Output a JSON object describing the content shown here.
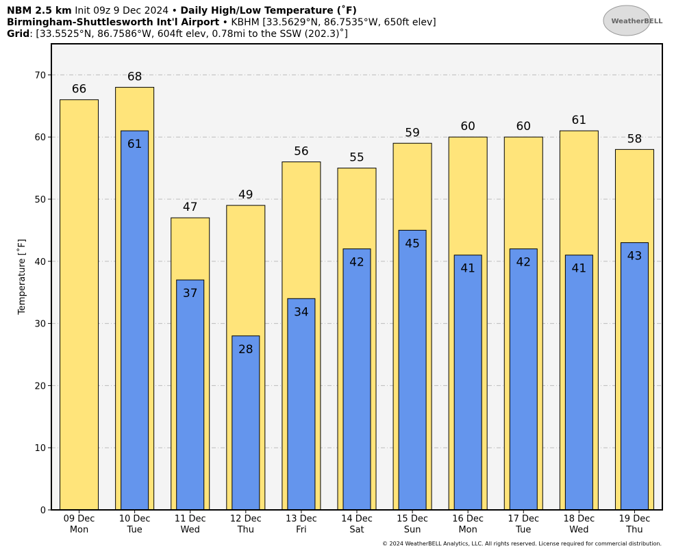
{
  "header": {
    "line1": [
      "NBM 2.5 km",
      " Init 09z 9 Dec 2024 • ",
      "Daily High/Low Temperature (˚F)"
    ],
    "line2": [
      "Birmingham-Shuttlesworth Int'l Airport",
      " • KBHM [33.5629°N, 86.7535°W, 650ft elev]"
    ],
    "line3": [
      "Grid",
      ": [33.5525°N, 86.7586°W, 604ft elev, 0.78mi to the SSW (202.3)˚]"
    ],
    "logo": "WeatherBELL",
    "footer": "© 2024 WeatherBELL Analytics, LLC. All rights reserved. License required for commercial distribution."
  },
  "chart_data": {
    "type": "bar",
    "ylabel": "Temperature [˚F]",
    "categories": [
      "09 Dec",
      "10 Dec",
      "11 Dec",
      "12 Dec",
      "13 Dec",
      "14 Dec",
      "15 Dec",
      "16 Dec",
      "17 Dec",
      "18 Dec",
      "19 Dec"
    ],
    "category_days": [
      "Mon",
      "Tue",
      "Wed",
      "Thu",
      "Fri",
      "Sat",
      "Sun",
      "Mon",
      "Tue",
      "Wed",
      "Thu"
    ],
    "series": [
      {
        "name": "High",
        "color": "#ffe47a",
        "values": [
          66,
          68,
          47,
          49,
          56,
          55,
          59,
          60,
          60,
          61,
          58
        ]
      },
      {
        "name": "Low",
        "color": "#6495ed",
        "values": [
          null,
          61,
          37,
          28,
          34,
          42,
          45,
          41,
          42,
          41,
          43
        ]
      }
    ],
    "ylim": [
      0,
      75
    ],
    "yticks": [
      0,
      10,
      20,
      30,
      40,
      50,
      60,
      70
    ],
    "grid": true
  }
}
